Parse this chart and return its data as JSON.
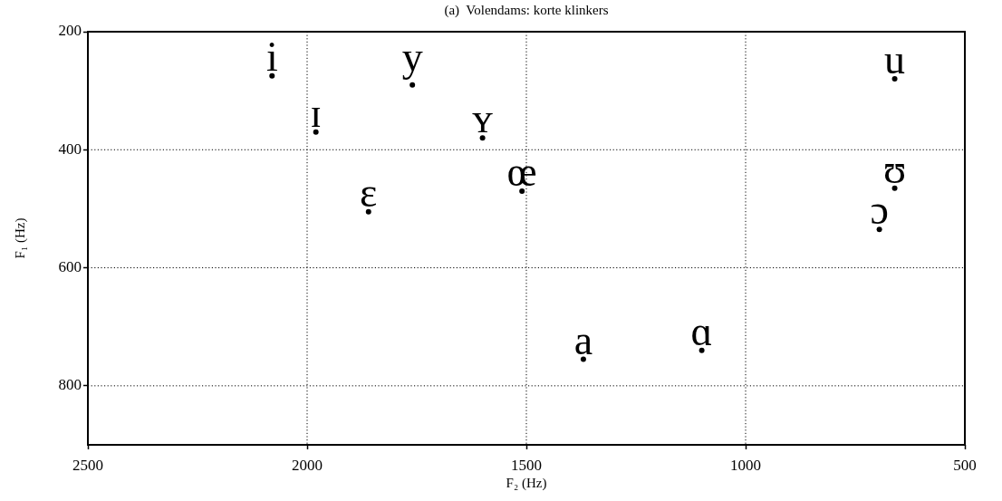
{
  "chart_data": {
    "type": "scatter",
    "title": "(a)  Volendams: korte klinkers",
    "xlabel": "F₂ (Hz)",
    "ylabel": "F₁ (Hz)",
    "x": [
      2080,
      1760,
      660,
      1980,
      1600,
      1860,
      1510,
      660,
      695,
      1370,
      1100
    ],
    "series": [
      {
        "color": "#000000",
        "values": [
          275,
          290,
          280,
          370,
          380,
          505,
          470,
          465,
          535,
          755,
          740
        ],
        "value_labels": [
          "i",
          "y",
          "u",
          "ɪ",
          "ʏ",
          "ɛ",
          "œ",
          "ʊ",
          "ɔ",
          "a",
          "ɑ"
        ]
      }
    ],
    "xlim": [
      2500,
      500
    ],
    "ylim": [
      900,
      200
    ],
    "xticks": [
      2500,
      2000,
      1500,
      1000,
      500
    ],
    "yticks": [
      200,
      400,
      600,
      800
    ],
    "grid": true,
    "legend": false,
    "marker": "circle"
  }
}
